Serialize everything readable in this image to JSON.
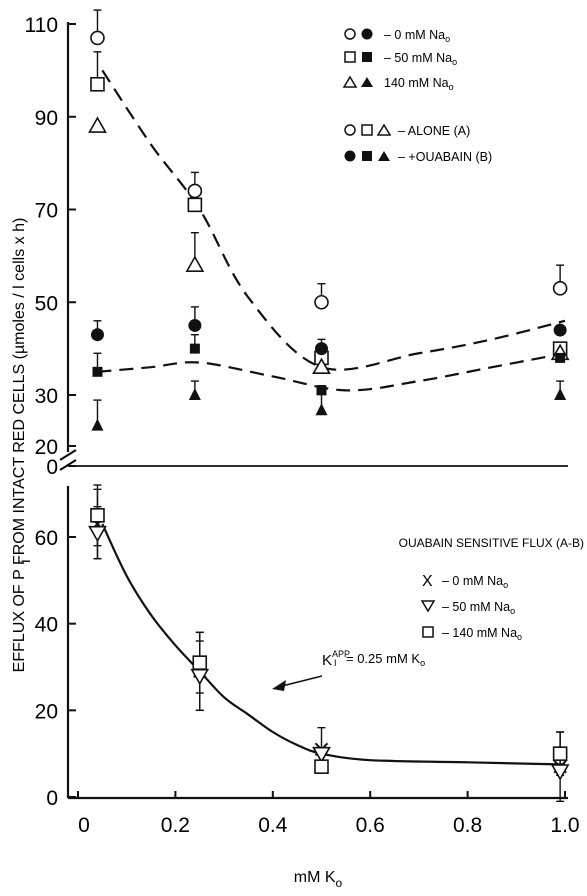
{
  "figure": {
    "xlabel": "mM  K",
    "xlabel_sub": "o",
    "ylabel": "EFFLUX OF P  FROM INTACT RED CELLS (µmoles / l cells x h)",
    "ylabel_sub": "i",
    "x_ticks": [
      "0",
      "0.2",
      "0.4",
      "0.6",
      "0.8",
      "1.0"
    ],
    "top_y_ticks": [
      "110",
      "90",
      "70",
      "50",
      "30",
      "20"
    ],
    "break_tick": "0",
    "bottom_y_ticks": [
      "60",
      "40",
      "20",
      "0"
    ]
  },
  "legend_top": {
    "items": [
      {
        "text": "–    0 mM Na",
        "sub": "o"
      },
      {
        "text": "–  50 mM Na",
        "sub": "o"
      },
      {
        "text": "140 mM Na",
        "sub": "o"
      },
      {
        "text": "– ALONE (A)"
      },
      {
        "text": "– +OUABAIN (B)"
      }
    ]
  },
  "legend_bottom": {
    "title": "OUABAIN SENSITIVE FLUX (A-B)",
    "items": [
      {
        "marker": "X",
        "text": "–    0 mM Na",
        "sub": "o"
      },
      {
        "text": "–  50 mM Na",
        "sub": "o"
      },
      {
        "text": "–  140 mM Na",
        "sub": "o"
      }
    ]
  },
  "annotation": {
    "k_symbol": "K",
    "k_sup": "APP",
    "k_sub": "I",
    "text": "= 0.25 mM K",
    "text_sub": "o"
  },
  "chart_data": [
    {
      "type": "scatter",
      "panel": "upper",
      "x": [
        0.04,
        0.24,
        0.5,
        0.99
      ],
      "ylim": [
        20,
        110
      ],
      "series": [
        {
          "name": "0 mM Na",
          "condition": "ALONE (A)",
          "marker": "circle-open",
          "y": [
            107,
            74,
            50,
            53
          ],
          "err": [
            6,
            4,
            4,
            5
          ]
        },
        {
          "name": "50 mM Na",
          "condition": "ALONE (A)",
          "marker": "square-open",
          "y": [
            97,
            71,
            38,
            40
          ],
          "err": [
            7,
            0,
            0,
            0
          ]
        },
        {
          "name": "140 mM Na",
          "condition": "ALONE (A)",
          "marker": "triangle-open",
          "y": [
            88,
            58,
            36,
            39
          ],
          "err": [
            0,
            7,
            0,
            0
          ]
        },
        {
          "name": "0 mM Na",
          "condition": "+OUABAIN (B)",
          "marker": "circle-filled",
          "y": [
            43,
            45,
            40,
            44
          ],
          "err": [
            3,
            4,
            2,
            0
          ]
        },
        {
          "name": "50 mM Na",
          "condition": "+OUABAIN (B)",
          "marker": "square-filled",
          "y": [
            35,
            40,
            31,
            38
          ],
          "err": [
            4,
            3,
            0,
            2
          ]
        },
        {
          "name": "140 mM Na",
          "condition": "+OUABAIN (B)",
          "marker": "triangle-filled",
          "y": [
            24,
            30,
            27,
            30
          ],
          "err": [
            5,
            3,
            5,
            3
          ]
        }
      ],
      "fit_curves": [
        {
          "style": "dashed",
          "x": [
            0.05,
            0.15,
            0.25,
            0.35,
            0.5,
            0.7,
            0.85,
            1.0
          ],
          "y": [
            100,
            84,
            70,
            51,
            36,
            39,
            42,
            46
          ]
        },
        {
          "style": "dashed",
          "x": [
            0.04,
            0.15,
            0.25,
            0.4,
            0.55,
            0.7,
            0.85,
            1.0
          ],
          "y": [
            35,
            36,
            37,
            34,
            31,
            33,
            36,
            39
          ]
        }
      ]
    },
    {
      "type": "scatter",
      "panel": "lower",
      "title": "OUABAIN SENSITIVE FLUX (A-B)",
      "x": [
        0.04,
        0.25,
        0.5,
        0.99
      ],
      "ylim": [
        0,
        70
      ],
      "series": [
        {
          "name": "0 mM Na",
          "marker": "x",
          "y": [
            63,
            29,
            11,
            7
          ],
          "err": [
            8,
            9,
            5,
            8
          ]
        },
        {
          "name": "50 mM Na",
          "marker": "triangle-down-open",
          "y": [
            61,
            28,
            10,
            6
          ],
          "err": [
            6,
            8,
            0,
            0
          ]
        },
        {
          "name": "140 mM Na",
          "marker": "square-open",
          "y": [
            65,
            31,
            7,
            10
          ],
          "err": [
            7,
            7,
            0,
            5
          ]
        }
      ],
      "fit_curve": {
        "style": "solid",
        "x": [
          0.05,
          0.1,
          0.15,
          0.2,
          0.25,
          0.3,
          0.35,
          0.4,
          0.45,
          0.5,
          0.6,
          0.8,
          1.0
        ],
        "y": [
          63,
          51,
          42,
          35,
          29,
          23,
          19,
          15,
          12,
          10,
          8.5,
          8,
          7.5
        ]
      }
    }
  ]
}
